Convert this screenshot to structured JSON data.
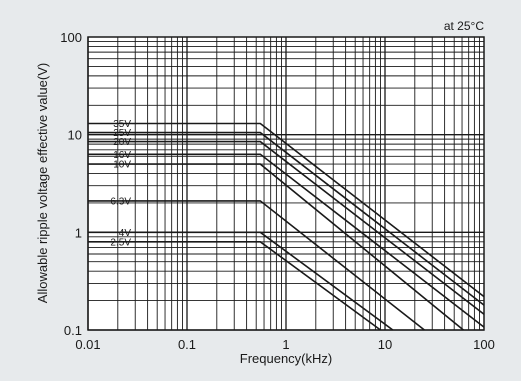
{
  "chart_data": {
    "type": "line",
    "title": "",
    "annotation": "at 25°C",
    "xlabel": "Frequency(kHz)",
    "ylabel": "Allowable ripple voltage effective value(V)",
    "xscale": "log",
    "yscale": "log",
    "xlim": [
      0.01,
      100
    ],
    "ylim": [
      0.1,
      100
    ],
    "x_ticks": [
      "0.01",
      "0.1",
      "1",
      "10",
      "100"
    ],
    "y_ticks": [
      "0.1",
      "1",
      "10",
      "100"
    ],
    "grid": true,
    "series": [
      {
        "name": "35V",
        "x": [
          0.01,
          0.55,
          100
        ],
        "y": [
          13,
          13,
          0.22
        ]
      },
      {
        "name": "25V",
        "x": [
          0.01,
          0.55,
          100
        ],
        "y": [
          10.5,
          10.5,
          0.18
        ]
      },
      {
        "name": "20V",
        "x": [
          0.01,
          0.55,
          100
        ],
        "y": [
          8.5,
          8.5,
          0.145
        ]
      },
      {
        "name": "16V",
        "x": [
          0.01,
          0.55,
          100
        ],
        "y": [
          6.3,
          6.3,
          0.107
        ]
      },
      {
        "name": "10V",
        "x": [
          0.01,
          0.55,
          62
        ],
        "y": [
          5,
          5,
          0.1
        ]
      },
      {
        "name": "6.3V",
        "x": [
          0.01,
          0.55,
          25
        ],
        "y": [
          2.1,
          2.1,
          0.1
        ]
      },
      {
        "name": "4V",
        "x": [
          0.01,
          0.55,
          12
        ],
        "y": [
          1,
          1,
          0.1
        ]
      },
      {
        "name": "2.5V",
        "x": [
          0.01,
          0.55,
          9
        ],
        "y": [
          0.8,
          0.8,
          0.1
        ]
      }
    ]
  }
}
